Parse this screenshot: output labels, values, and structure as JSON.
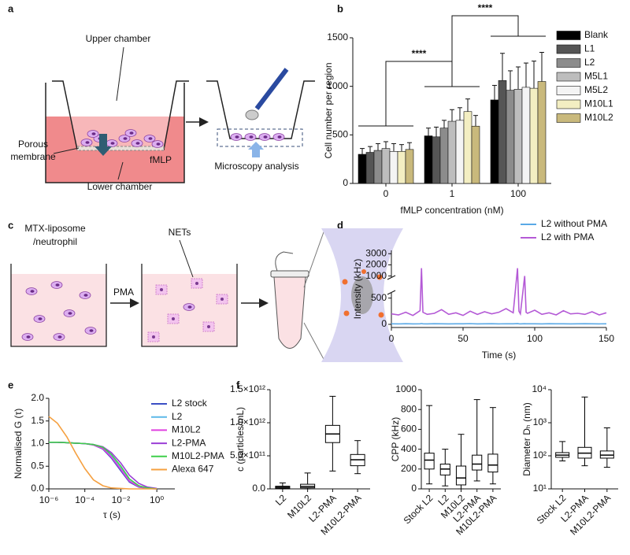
{
  "panel_labels": [
    "a",
    "b",
    "c",
    "d",
    "e",
    "f"
  ],
  "diagram_a": {
    "upper_chamber": "Upper chamber",
    "porous_membrane": [
      "Porous",
      "membrane"
    ],
    "fmlp": "fMLP",
    "lower_chamber": "Lower chamber",
    "microscopy": "Microscopy analysis"
  },
  "diagram_c": {
    "liposome": [
      "MTX-liposome",
      "/neutrophil"
    ],
    "nets": "NETs",
    "pma": "PMA"
  },
  "chart_data": [
    {
      "type": "bar",
      "xlabel": "fMLP concentration (nM)",
      "ylabel": "Cell number per region",
      "categories": [
        "0",
        "1",
        "100"
      ],
      "ylim": [
        0,
        1500
      ],
      "yticks": [
        0,
        500,
        1000,
        1500
      ],
      "legend": "right",
      "annotations": [
        "****",
        "****"
      ],
      "series": [
        {
          "name": "Blank",
          "color": "#000000",
          "values": [
            300,
            490,
            860
          ],
          "errors": [
            60,
            80,
            150
          ]
        },
        {
          "name": "L1",
          "color": "#555555",
          "values": [
            320,
            480,
            1060
          ],
          "errors": [
            60,
            100,
            280
          ]
        },
        {
          "name": "L2",
          "color": "#8c8c8c",
          "values": [
            340,
            570,
            960
          ],
          "errors": [
            70,
            80,
            200
          ]
        },
        {
          "name": "M5L1",
          "color": "#bdbdbd",
          "values": [
            360,
            640,
            970
          ],
          "errors": [
            70,
            120,
            230
          ]
        },
        {
          "name": "M5L2",
          "color": "#f4f4f4",
          "values": [
            330,
            650,
            990
          ],
          "errors": [
            80,
            130,
            250
          ]
        },
        {
          "name": "M10L1",
          "color": "#f3eec2",
          "values": [
            330,
            740,
            980
          ],
          "errors": [
            70,
            130,
            280
          ]
        },
        {
          "name": "M10L2",
          "color": "#c9b97c",
          "values": [
            350,
            590,
            1050
          ],
          "errors": [
            70,
            110,
            300
          ]
        }
      ]
    },
    {
      "type": "line",
      "xlabel": "Time (s)",
      "ylabel": "Intensity (kHz)",
      "xlim": [
        0,
        150
      ],
      "xticks": [
        0,
        50,
        100,
        150
      ],
      "ylim": [
        -60,
        3300
      ],
      "ybreak": [
        600,
        900
      ],
      "yticks": [
        0,
        500,
        1000,
        2000,
        3000
      ],
      "legend": "upper right",
      "x": [
        0,
        5,
        10,
        15,
        20,
        21,
        22,
        25,
        30,
        35,
        40,
        45,
        50,
        55,
        60,
        65,
        70,
        75,
        80,
        85,
        88,
        89,
        90,
        93,
        94,
        95,
        100,
        105,
        110,
        115,
        120,
        125,
        130,
        135,
        140,
        145,
        150
      ],
      "series": [
        {
          "name": "L2 without PMA",
          "color": "#5aa9e6",
          "values": [
            10,
            8,
            12,
            9,
            11,
            15,
            10,
            9,
            12,
            10,
            8,
            11,
            10,
            13,
            9,
            10,
            12,
            9,
            11,
            10,
            14,
            10,
            9,
            12,
            10,
            11,
            10,
            9,
            12,
            10,
            11,
            9,
            10,
            12,
            10,
            9,
            11
          ]
        },
        {
          "name": "L2 with PMA",
          "color": "#b45ad6",
          "values": [
            200,
            180,
            230,
            170,
            260,
            1700,
            230,
            190,
            210,
            280,
            190,
            220,
            170,
            250,
            190,
            240,
            200,
            230,
            300,
            220,
            1700,
            250,
            200,
            1000,
            230,
            210,
            270,
            190,
            220,
            180,
            260,
            200,
            210,
            190,
            240,
            180,
            220
          ]
        }
      ]
    },
    {
      "type": "line",
      "xlabel": "τ (s)",
      "ylabel": "Normalised G (τ)",
      "xlog": true,
      "xlim": [
        1e-06,
        10
      ],
      "xticks": [
        {
          "value": 1e-06,
          "label": "10⁻⁶"
        },
        {
          "value": 0.0001,
          "label": "10⁻⁴"
        },
        {
          "value": 0.01,
          "label": "10⁻²"
        },
        {
          "value": 1,
          "label": "10⁰"
        }
      ],
      "ylim": [
        0,
        2
      ],
      "yticks": [
        {
          "value": 0,
          "label": "0.0"
        },
        {
          "value": 0.5,
          "label": "0.5"
        },
        {
          "value": 1,
          "label": "1.0"
        },
        {
          "value": 1.5,
          "label": "1.5"
        },
        {
          "value": 2,
          "label": "2.0"
        }
      ],
      "legend": "upper right",
      "x": [
        1e-06,
        3e-06,
        1e-05,
        3e-05,
        0.0001,
        0.0003,
        0.001,
        0.003,
        0.01,
        0.03,
        0.1,
        0.3,
        1
      ],
      "series": [
        {
          "name": "L2 stock",
          "color": "#3b4fc4",
          "values": [
            1.03,
            1.03,
            1.02,
            1.01,
            1.0,
            0.97,
            0.88,
            0.68,
            0.4,
            0.15,
            0.04,
            0.01,
            0
          ]
        },
        {
          "name": "L2",
          "color": "#5cb8e8",
          "values": [
            1.03,
            1.03,
            1.02,
            1.01,
            1.0,
            0.98,
            0.9,
            0.72,
            0.45,
            0.18,
            0.05,
            0.01,
            0
          ]
        },
        {
          "name": "M10L2",
          "color": "#e040e0",
          "values": [
            1.03,
            1.03,
            1.02,
            1.01,
            1.0,
            0.97,
            0.89,
            0.7,
            0.43,
            0.17,
            0.05,
            0.01,
            0
          ]
        },
        {
          "name": "L2-PMA",
          "color": "#9b3fd6",
          "values": [
            1.03,
            1.03,
            1.02,
            1.01,
            1.0,
            0.98,
            0.93,
            0.8,
            0.57,
            0.3,
            0.12,
            0.04,
            0.01
          ]
        },
        {
          "name": "M10L2-PMA",
          "color": "#3ecf4a",
          "values": [
            1.03,
            1.03,
            1.02,
            1.01,
            1.0,
            0.98,
            0.92,
            0.76,
            0.5,
            0.22,
            0.07,
            0.02,
            0
          ]
        },
        {
          "name": "Alexa 647",
          "color": "#f5a040",
          "values": [
            1.6,
            1.45,
            1.15,
            0.8,
            0.45,
            0.2,
            0.07,
            0.02,
            0.01,
            0,
            0,
            0,
            0
          ]
        }
      ]
    },
    {
      "type": "box",
      "ylabel": "c (particles/mL)",
      "color": "#000000",
      "ylim": [
        0,
        1500000000000
      ],
      "yticks": [
        {
          "value": 0,
          "label": "0.0"
        },
        {
          "value": 500000000000,
          "label": "5.0×10¹¹"
        },
        {
          "value": 1000000000000,
          "label": "1.0×10¹²"
        },
        {
          "value": 1500000000000,
          "label": "1.5×10¹²"
        }
      ],
      "categories": [
        "L2",
        "M10L2",
        "L2-PMA",
        "M10L2-PMA"
      ],
      "stats": [
        {
          "min": 0,
          "q1": 10000000000,
          "median": 25000000000,
          "q3": 40000000000,
          "max": 90000000000
        },
        {
          "min": 0,
          "q1": 15000000000,
          "median": 35000000000,
          "q3": 70000000000,
          "max": 240000000000
        },
        {
          "min": 270000000000,
          "q1": 700000000000,
          "median": 830000000000,
          "q3": 960000000000,
          "max": 1400000000000
        },
        {
          "min": 230000000000,
          "q1": 350000000000,
          "median": 440000000000,
          "q3": 520000000000,
          "max": 730000000000
        }
      ]
    },
    {
      "type": "box",
      "ylabel": "CPP (kHz)",
      "color": "#000000",
      "ylim": [
        0,
        1000
      ],
      "yticks": [
        0,
        200,
        400,
        600,
        800,
        1000
      ],
      "categories": [
        "Stock L2",
        "L2",
        "M10L2",
        "L2-PMA",
        "M10L2-PMA"
      ],
      "stats": [
        {
          "min": 50,
          "q1": 200,
          "median": 290,
          "q3": 360,
          "max": 840
        },
        {
          "min": 30,
          "q1": 140,
          "median": 200,
          "q3": 250,
          "max": 400
        },
        {
          "min": 0,
          "q1": 40,
          "median": 110,
          "q3": 230,
          "max": 550
        },
        {
          "min": 80,
          "q1": 190,
          "median": 250,
          "q3": 340,
          "max": 900
        },
        {
          "min": 50,
          "q1": 170,
          "median": 240,
          "q3": 350,
          "max": 820
        }
      ]
    },
    {
      "type": "box",
      "ylabel": "Diameter Dₕ (nm)",
      "color": "#000000",
      "ylog": true,
      "ylim": [
        10,
        10000
      ],
      "yticks": [
        {
          "value": 10,
          "label": "10¹"
        },
        {
          "value": 100,
          "label": "10²"
        },
        {
          "value": 1000,
          "label": "10³"
        },
        {
          "value": 10000,
          "label": "10⁴"
        }
      ],
      "categories": [
        "Stock L2",
        "L2-PMA",
        "M10L2-PMA"
      ],
      "stats": [
        {
          "min": 70,
          "q1": 90,
          "median": 105,
          "q3": 125,
          "max": 270
        },
        {
          "min": 50,
          "q1": 85,
          "median": 120,
          "q3": 180,
          "max": 6000
        },
        {
          "min": 45,
          "q1": 85,
          "median": 105,
          "q3": 140,
          "max": 700
        }
      ]
    }
  ]
}
